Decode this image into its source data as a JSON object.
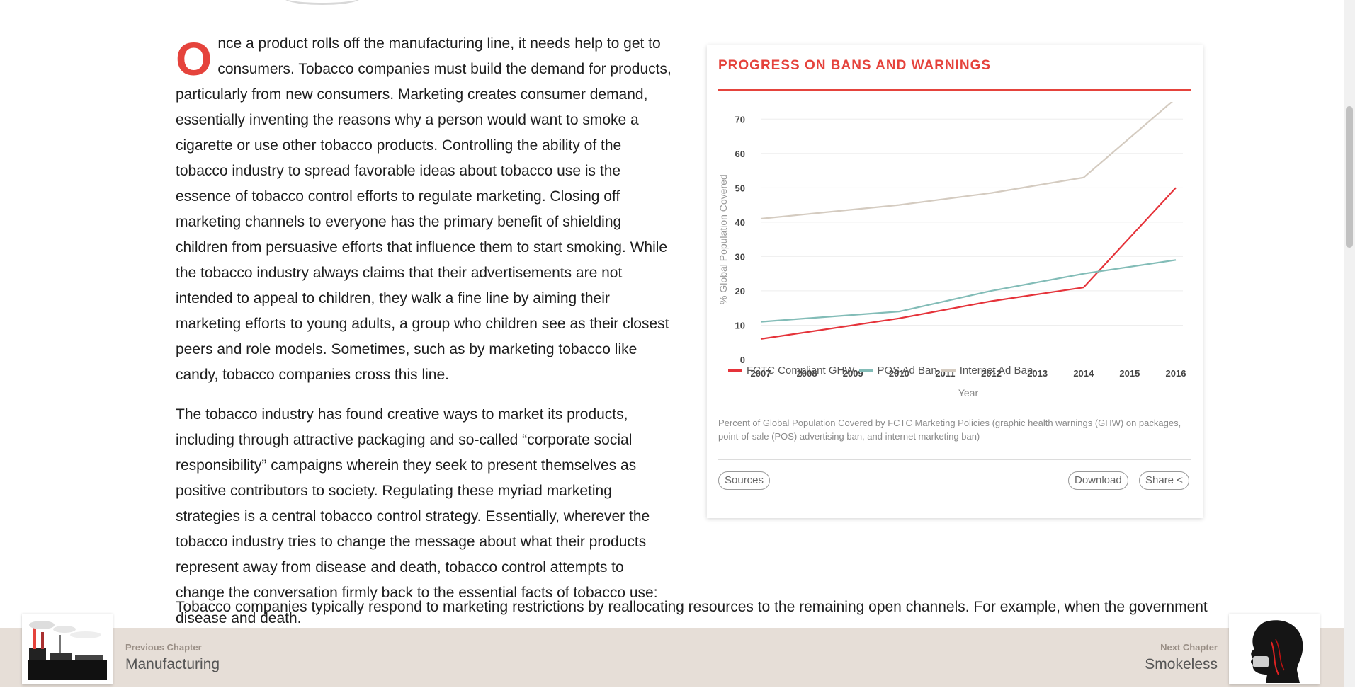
{
  "article": {
    "dropcap": "O",
    "para1": "nce a product rolls off the manufacturing line, it needs help to get to consumers. Tobacco companies must build the demand for products, particularly from new consumers. Marketing creates consumer demand, essentially inventing the reasons why a person would want to smoke a cigarette or use other tobacco products. Controlling the ability of the tobacco industry to spread favorable ideas about tobacco use is the essence of tobacco control efforts to regulate marketing. Closing off marketing channels to everyone has the primary benefit of shielding children from persuasive efforts that influence them to start smoking. While the tobacco industry always claims that their advertisements are not intended to appeal to children, they walk a fine line by aiming their marketing efforts to young adults, a group who children see as their closest peers and role models. Sometimes, such as by marketing tobacco like candy, tobacco companies cross this line.",
    "para2": "The tobacco industry has found creative ways to market its products, including through attractive packaging and so-called “corporate social responsibility” campaigns wherein they seek to present themselves as positive contributors to society. Regulating these myriad marketing strategies is a central tobacco control strategy. Essentially, wherever the tobacco industry tries to change the message about what their products represent away from disease and death, tobacco control attempts to change the conversation firmly back to the essential facts of tobacco use: disease and death.",
    "para3": "Tobacco companies typically respond to marketing restrictions by reallocating resources to the remaining open channels. For example, when the government"
  },
  "card": {
    "title": "PROGRESS ON BANS AND WARNINGS",
    "caption": "Percent of Global Population Covered by FCTC Marketing Policies (graphic health warnings (GHW) on packages, point-of-sale (POS) advertising ban, and internet marketing ban)",
    "sources_label": "Sources",
    "download_label": "Download",
    "share_label": "Share <"
  },
  "chart_data": {
    "type": "line",
    "x": [
      2007,
      2008,
      2009,
      2010,
      2011,
      2012,
      2013,
      2014,
      2015,
      2016
    ],
    "xlabel": "Year",
    "ylabel": "% Global Population Covered",
    "ylim": [
      0,
      75
    ],
    "yticks": [
      0,
      10,
      20,
      30,
      40,
      50,
      60,
      70
    ],
    "grid": true,
    "legend_position": "bottom-left",
    "series": [
      {
        "name": "FCTC Compliant GHW",
        "color": "#e5333a",
        "points": [
          [
            2007,
            6
          ],
          [
            2010,
            12
          ],
          [
            2012,
            17
          ],
          [
            2014,
            21
          ],
          [
            2016,
            50
          ]
        ]
      },
      {
        "name": "POS Ad Ban",
        "color": "#82bcb7",
        "points": [
          [
            2007,
            11
          ],
          [
            2010,
            14
          ],
          [
            2012,
            20
          ],
          [
            2014,
            25
          ],
          [
            2016,
            29
          ]
        ]
      },
      {
        "name": "Internet Ad Ban",
        "color": "#d4cbc0",
        "points": [
          [
            2007,
            41
          ],
          [
            2010,
            45
          ],
          [
            2012,
            48.5
          ],
          [
            2014,
            53
          ],
          [
            2016,
            76
          ]
        ]
      }
    ]
  },
  "footer": {
    "prev_small": "Previous Chapter",
    "prev_big": "Manufacturing",
    "next_small": "Next Chapter",
    "next_big": "Smokeless"
  }
}
